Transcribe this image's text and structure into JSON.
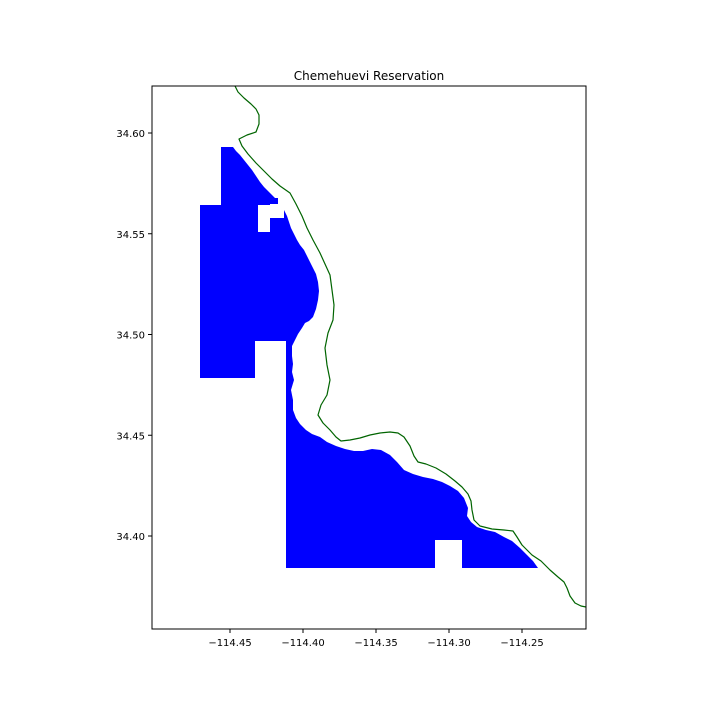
{
  "map": {
    "title": "Chemehuevi Reservation",
    "colors": {
      "reservation_fill": "#0000ff",
      "river_line": "#006400",
      "frame": "#000000",
      "background": "#ffffff"
    },
    "x_ticks": [
      {
        "value": -114.45,
        "label": "−114.45"
      },
      {
        "value": -114.4,
        "label": "−114.40"
      },
      {
        "value": -114.35,
        "label": "−114.35"
      },
      {
        "value": -114.3,
        "label": "−114.30"
      },
      {
        "value": -114.25,
        "label": "−114.25"
      }
    ],
    "y_ticks": [
      {
        "value": 34.4,
        "label": "34.40"
      },
      {
        "value": 34.45,
        "label": "34.45"
      },
      {
        "value": 34.5,
        "label": "34.50"
      },
      {
        "value": 34.55,
        "label": "34.55"
      },
      {
        "value": 34.6,
        "label": "34.60"
      }
    ]
  }
}
